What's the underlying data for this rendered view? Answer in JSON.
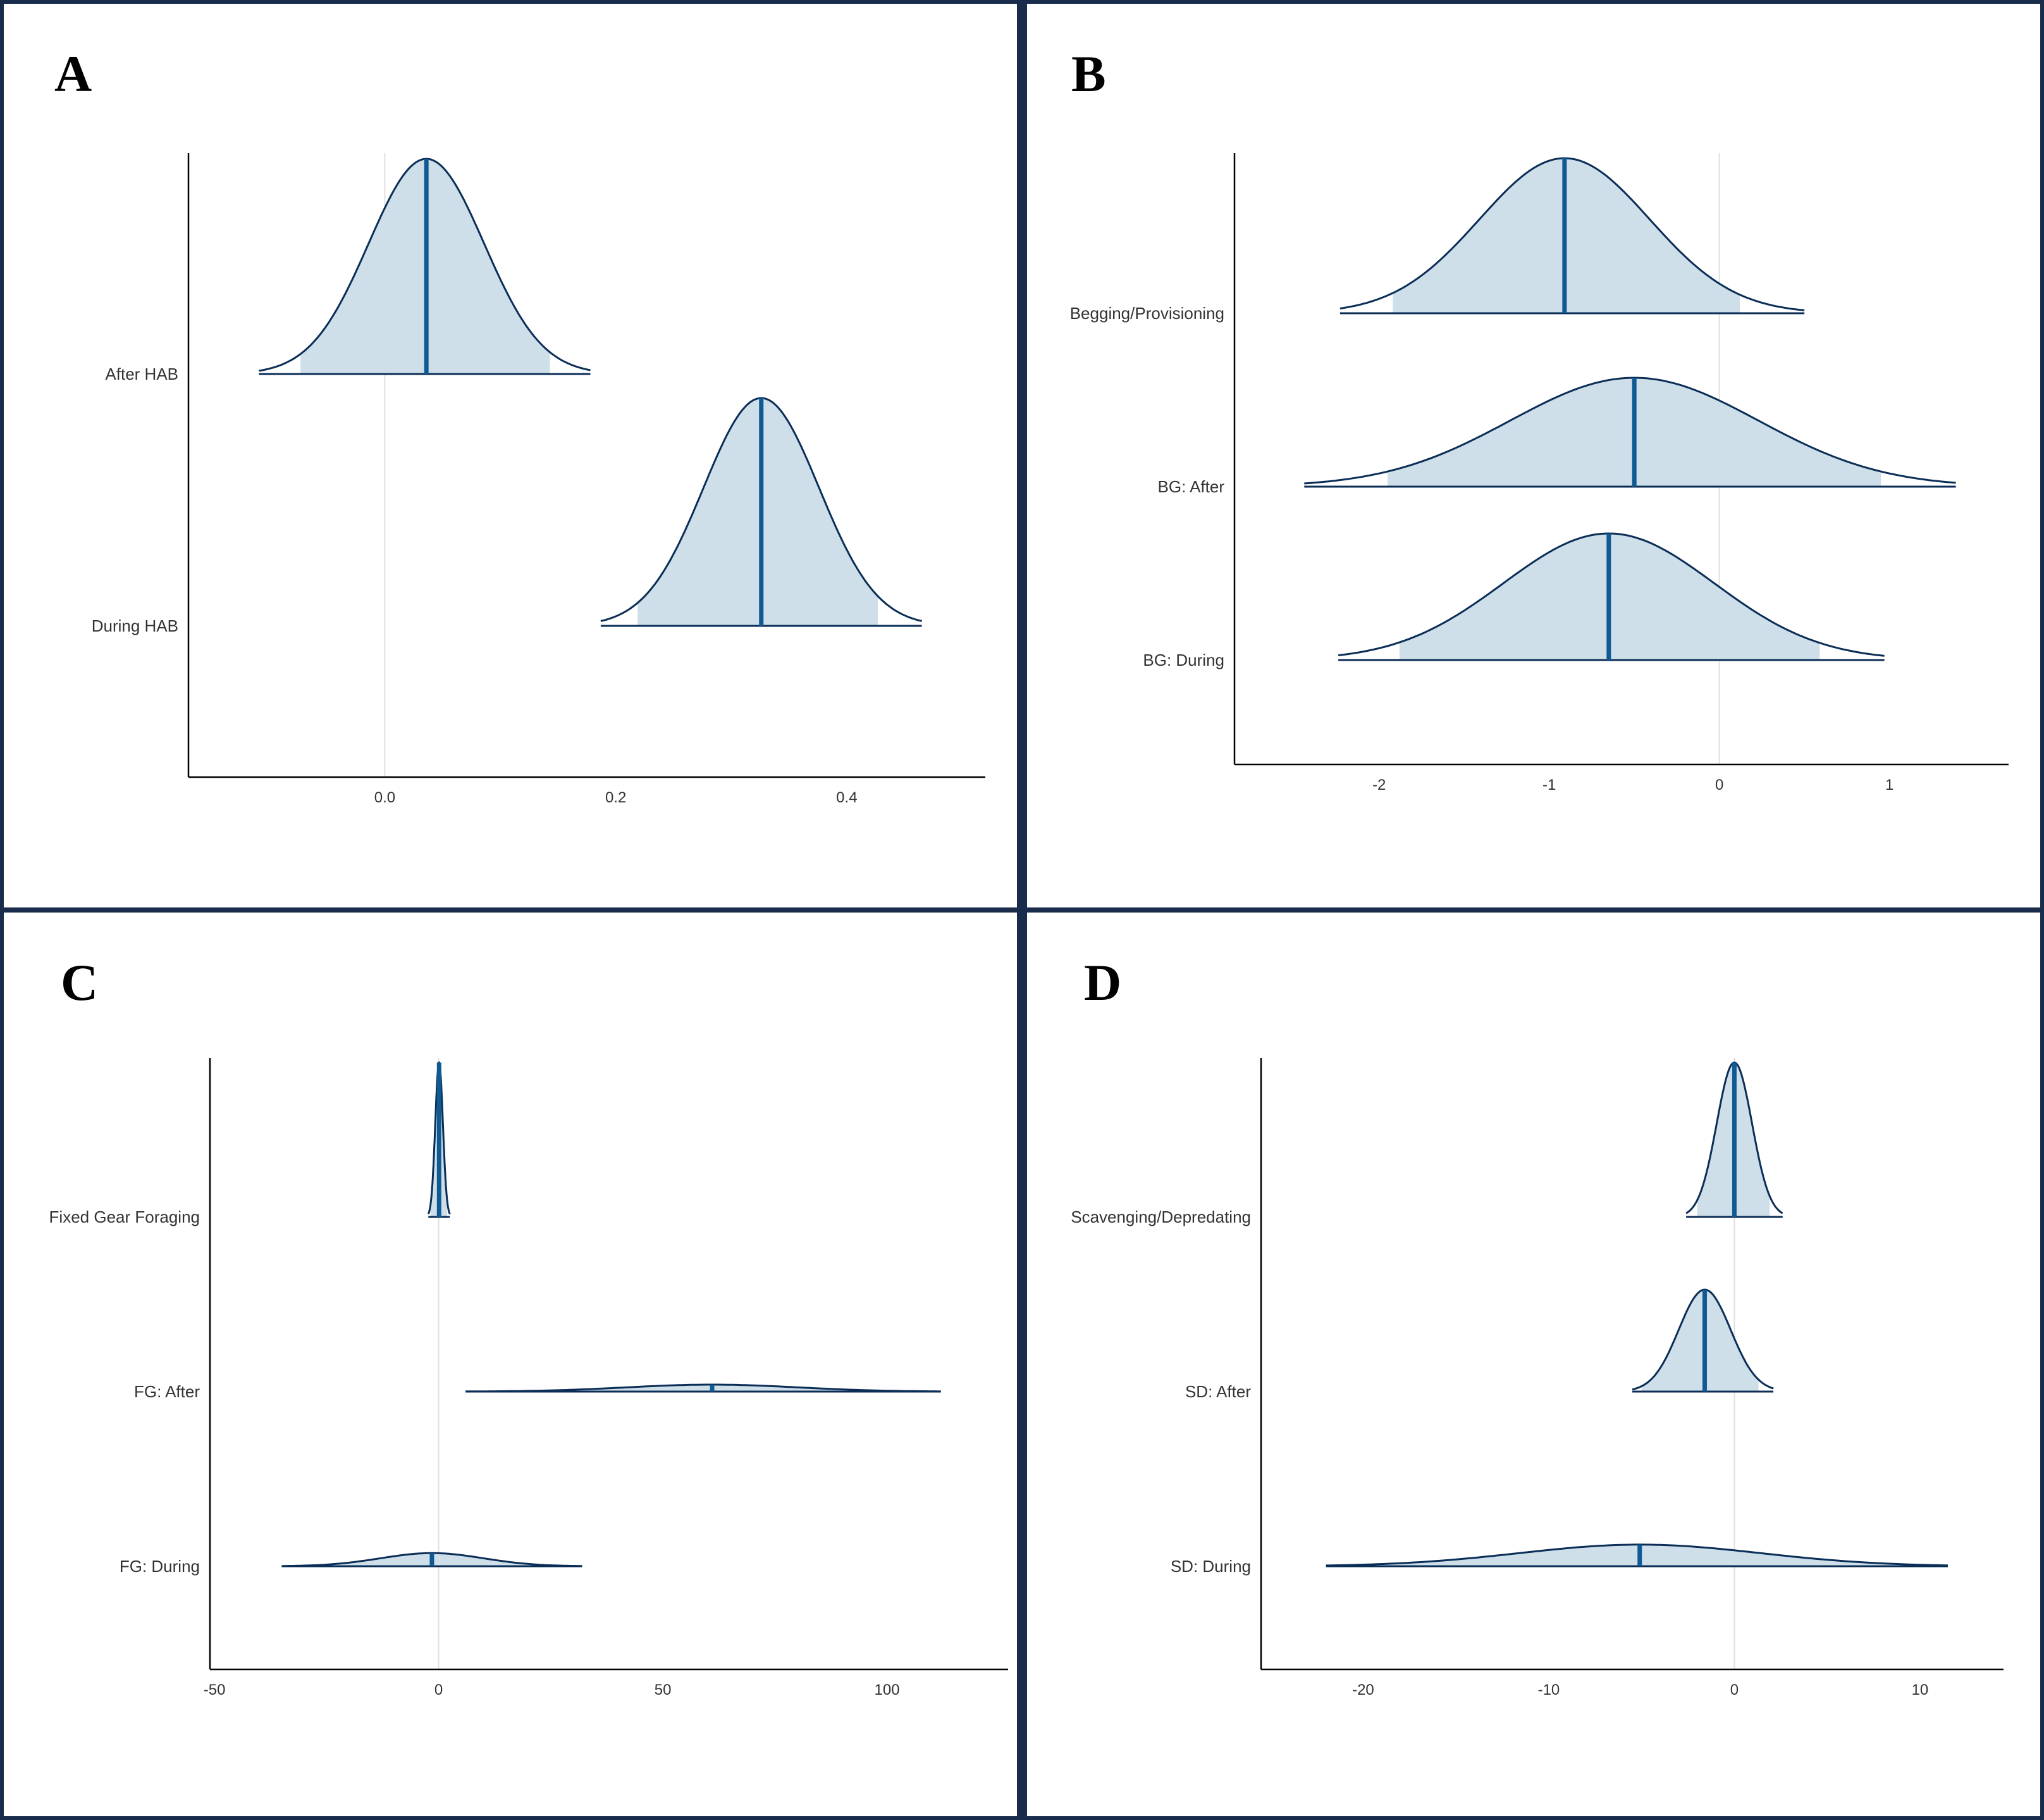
{
  "colors": {
    "border": "#1a2c4b",
    "curve_outline": "#0b2e57",
    "interval_fill": "#cfdfea",
    "median_line": "#105a94",
    "zero_line": "#e0e0e0",
    "axis": "#000000"
  },
  "chart_data": [
    {
      "panel": "A",
      "type": "density",
      "xlim": [
        -0.17,
        0.52
      ],
      "x_ticks": [
        "0.0",
        "0.2",
        "0.4"
      ],
      "x_tick_values": [
        0.0,
        0.2,
        0.4
      ],
      "reference_line": 0,
      "categories": [
        "After HAB",
        "During HAB"
      ],
      "series": [
        {
          "label": "After HAB",
          "median": 0.036,
          "interval": [
            -0.073,
            0.143
          ],
          "range": [
            -0.109,
            0.178
          ],
          "sd": 0.05,
          "relative_height": 1.0
        },
        {
          "label": "During HAB",
          "median": 0.326,
          "interval": [
            0.219,
            0.427
          ],
          "range": [
            0.187,
            0.465
          ],
          "sd": 0.05,
          "relative_height": 1.0
        }
      ]
    },
    {
      "panel": "B",
      "type": "density",
      "xlim": [
        -2.85,
        1.7
      ],
      "x_ticks": [
        "-2",
        "-1",
        "0",
        "1"
      ],
      "x_tick_values": [
        -2,
        -1,
        0,
        1
      ],
      "reference_line": 0,
      "categories": [
        "Begging/Provisioning",
        "BG: After",
        "BG: During"
      ],
      "series": [
        {
          "label": "Begging/Provisioning",
          "median": -0.91,
          "interval": [
            -1.92,
            0.12
          ],
          "range": [
            -2.23,
            0.5
          ],
          "sd": 0.5,
          "relative_height": 1.0
        },
        {
          "label": "BG: After",
          "median": -0.5,
          "interval": [
            -1.95,
            0.95
          ],
          "range": [
            -2.44,
            1.39
          ],
          "sd": 0.73,
          "relative_height": 1.0
        },
        {
          "label": "BG: During",
          "median": -0.65,
          "interval": [
            -1.88,
            0.59
          ],
          "range": [
            -2.24,
            0.97
          ],
          "sd": 0.62,
          "relative_height": 1.0
        }
      ]
    },
    {
      "panel": "C",
      "type": "density",
      "xlim": [
        -51,
        127
      ],
      "x_ticks": [
        "-50",
        "0",
        "50",
        "100"
      ],
      "x_tick_values": [
        -50,
        0,
        50,
        100
      ],
      "reference_line": 0,
      "categories": [
        "Fixed Gear Foraging",
        "FG: After",
        "FG: During"
      ],
      "series": [
        {
          "label": "Fixed Gear Foraging",
          "median": 0.1,
          "interval": [
            -1.8,
            1.9
          ],
          "range": [
            -2.3,
            2.5
          ],
          "sd": 0.85,
          "relative_height": 1.0
        },
        {
          "label": "FG: After",
          "median": 61,
          "interval": [
            22,
            100
          ],
          "range": [
            6,
            112
          ],
          "sd": 19,
          "relative_height": 0.045
        },
        {
          "label": "FG: During",
          "median": -1.5,
          "interval": [
            -26,
            24
          ],
          "range": [
            -35,
            32
          ],
          "sd": 11.5,
          "relative_height": 0.085
        }
      ]
    },
    {
      "panel": "D",
      "type": "density",
      "xlim": [
        -25.5,
        14.5
      ],
      "x_ticks": [
        "-20",
        "-10",
        "0",
        "10"
      ],
      "x_tick_values": [
        -20,
        -10,
        0,
        10
      ],
      "reference_line": 0,
      "categories": [
        "Scavenging/Depredating",
        "SD: After",
        "SD: During"
      ],
      "series": [
        {
          "label": "Scavenging/Depredating",
          "median": 0.0,
          "interval": [
            -2.0,
            1.9
          ],
          "range": [
            -2.6,
            2.6
          ],
          "sd": 0.95,
          "relative_height": 1.0
        },
        {
          "label": "SD: After",
          "median": -1.6,
          "interval": [
            -5.0,
            1.3
          ],
          "range": [
            -5.5,
            2.1
          ],
          "sd": 1.4,
          "relative_height": 0.66
        },
        {
          "label": "SD: During",
          "median": -5.1,
          "interval": [
            -20,
            11
          ],
          "range": [
            -22,
            11.5
          ],
          "sd": 6.5,
          "relative_height": 0.14
        }
      ]
    }
  ]
}
